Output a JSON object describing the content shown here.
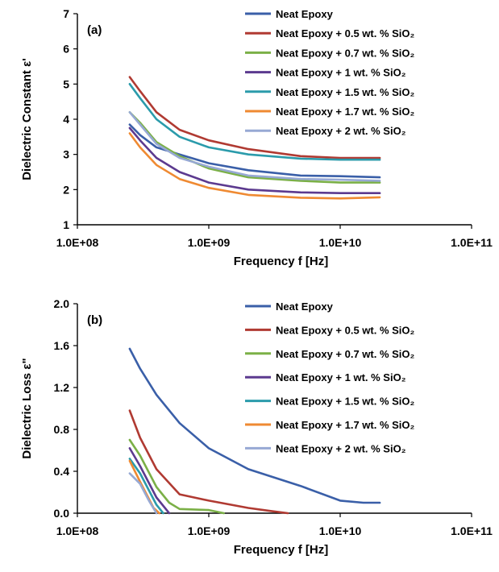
{
  "chart_data": [
    {
      "type": "line",
      "panel_label": "(a)",
      "xlabel": "Frequency f [Hz]",
      "ylabel": "Dielectric Constant ε'",
      "xscale": "log",
      "xlim": [
        100000000,
        100000000000
      ],
      "ylim": [
        1,
        7
      ],
      "xticks": [
        {
          "value": 100000000,
          "label": "1.0E+08"
        },
        {
          "value": 1000000000,
          "label": "1.0E+09"
        },
        {
          "value": 10000000000,
          "label": "1.0E+10"
        },
        {
          "value": 100000000000,
          "label": "1.0E+11"
        }
      ],
      "yticks": [
        {
          "value": 1,
          "label": "1"
        },
        {
          "value": 2,
          "label": "2"
        },
        {
          "value": 3,
          "label": "3"
        },
        {
          "value": 4,
          "label": "4"
        },
        {
          "value": 5,
          "label": "5"
        },
        {
          "value": 6,
          "label": "6"
        },
        {
          "value": 7,
          "label": "7"
        }
      ],
      "grid": false,
      "legend_position": "top-right",
      "series": [
        {
          "name": "Neat Epoxy",
          "color": "#3a5fa8",
          "x": [
            250000000,
            300000000,
            400000000,
            600000000,
            1000000000,
            2000000000,
            5000000000,
            10000000000,
            20000000000
          ],
          "y": [
            3.85,
            3.55,
            3.2,
            3.0,
            2.75,
            2.55,
            2.4,
            2.38,
            2.35
          ]
        },
        {
          "name": "Neat Epoxy + 0.5 wt. % SiO₂",
          "color": "#b03a32",
          "x": [
            250000000,
            300000000,
            400000000,
            600000000,
            1000000000,
            2000000000,
            5000000000,
            10000000000,
            20000000000
          ],
          "y": [
            5.2,
            4.8,
            4.2,
            3.7,
            3.4,
            3.15,
            2.95,
            2.9,
            2.9
          ]
        },
        {
          "name": "Neat Epoxy + 0.7 wt. % SiO₂",
          "color": "#7bb047",
          "x": [
            250000000,
            300000000,
            400000000,
            600000000,
            1000000000,
            2000000000,
            5000000000,
            10000000000,
            20000000000
          ],
          "y": [
            4.2,
            3.9,
            3.35,
            2.95,
            2.6,
            2.35,
            2.25,
            2.2,
            2.2
          ]
        },
        {
          "name": "Neat Epoxy + 1 wt. % SiO₂",
          "color": "#5c3a8f",
          "x": [
            250000000,
            300000000,
            400000000,
            600000000,
            1000000000,
            2000000000,
            5000000000,
            10000000000,
            20000000000
          ],
          "y": [
            3.75,
            3.4,
            2.9,
            2.5,
            2.2,
            2.0,
            1.92,
            1.9,
            1.9
          ]
        },
        {
          "name": "Neat Epoxy + 1.5 wt. % SiO₂",
          "color": "#2b9bab",
          "x": [
            250000000,
            300000000,
            400000000,
            600000000,
            1000000000,
            2000000000,
            5000000000,
            10000000000,
            20000000000
          ],
          "y": [
            5.0,
            4.6,
            4.0,
            3.5,
            3.2,
            3.0,
            2.88,
            2.85,
            2.85
          ]
        },
        {
          "name": "Neat Epoxy + 1.7 wt. % SiO₂",
          "color": "#ef8a32",
          "x": [
            250000000,
            300000000,
            400000000,
            600000000,
            1000000000,
            2000000000,
            5000000000,
            10000000000,
            20000000000
          ],
          "y": [
            3.6,
            3.2,
            2.7,
            2.3,
            2.05,
            1.85,
            1.77,
            1.75,
            1.78
          ]
        },
        {
          "name": "Neat Epoxy + 2 wt. % SiO₂",
          "color": "#97a9d4",
          "x": [
            250000000,
            300000000,
            400000000,
            600000000,
            1000000000,
            2000000000,
            5000000000,
            10000000000,
            20000000000
          ],
          "y": [
            4.2,
            3.85,
            3.3,
            2.9,
            2.65,
            2.4,
            2.3,
            2.28,
            2.25
          ]
        }
      ]
    },
    {
      "type": "line",
      "panel_label": "(b)",
      "xlabel": "Frequency f [Hz]",
      "ylabel": "Dielectric Loss ε\"",
      "xscale": "log",
      "xlim": [
        100000000,
        100000000000
      ],
      "ylim": [
        0,
        2
      ],
      "xticks": [
        {
          "value": 100000000,
          "label": "1.0E+08"
        },
        {
          "value": 1000000000,
          "label": "1.0E+09"
        },
        {
          "value": 10000000000,
          "label": "1.0E+10"
        },
        {
          "value": 100000000000,
          "label": "1.0E+11"
        }
      ],
      "yticks": [
        {
          "value": 0,
          "label": "0.0"
        },
        {
          "value": 0.4,
          "label": "0.4"
        },
        {
          "value": 0.8,
          "label": "0.8"
        },
        {
          "value": 1.2,
          "label": "1.2"
        },
        {
          "value": 1.6,
          "label": "1.6"
        },
        {
          "value": 2.0,
          "label": "2.0"
        }
      ],
      "grid": false,
      "legend_position": "top-right",
      "series": [
        {
          "name": "Neat Epoxy",
          "color": "#3a5fa8",
          "x": [
            250000000,
            300000000,
            400000000,
            600000000,
            1000000000,
            2000000000,
            5000000000,
            10000000000,
            15000000000,
            20000000000
          ],
          "y": [
            1.57,
            1.38,
            1.13,
            0.86,
            0.62,
            0.42,
            0.26,
            0.12,
            0.1,
            0.1
          ]
        },
        {
          "name": "Neat Epoxy + 0.5 wt. % SiO₂",
          "color": "#b03a32",
          "x": [
            250000000,
            300000000,
            400000000,
            600000000,
            1000000000,
            2000000000,
            3000000000,
            4000000000
          ],
          "y": [
            0.98,
            0.72,
            0.42,
            0.18,
            0.12,
            0.05,
            0.02,
            0.0
          ]
        },
        {
          "name": "Neat Epoxy + 0.7 wt. % SiO₂",
          "color": "#7bb047",
          "x": [
            250000000,
            300000000,
            400000000,
            500000000,
            600000000,
            1000000000,
            1300000000
          ],
          "y": [
            0.7,
            0.55,
            0.25,
            0.1,
            0.04,
            0.03,
            0.0
          ]
        },
        {
          "name": "Neat Epoxy + 1 wt. % SiO₂",
          "color": "#5c3a8f",
          "x": [
            250000000,
            300000000,
            400000000,
            500000000
          ],
          "y": [
            0.62,
            0.45,
            0.15,
            0.0
          ]
        },
        {
          "name": "Neat Epoxy + 1.5 wt. % SiO₂",
          "color": "#2b9bab",
          "x": [
            250000000,
            300000000,
            400000000,
            450000000
          ],
          "y": [
            0.52,
            0.38,
            0.08,
            0.0
          ]
        },
        {
          "name": "Neat Epoxy + 1.7 wt. % SiO₂",
          "color": "#ef8a32",
          "x": [
            250000000,
            300000000,
            380000000,
            420000000
          ],
          "y": [
            0.5,
            0.3,
            0.05,
            0.0
          ]
        },
        {
          "name": "Neat Epoxy + 2 wt. % SiO₂",
          "color": "#97a9d4",
          "x": [
            250000000,
            300000000,
            350000000,
            400000000
          ],
          "y": [
            0.38,
            0.28,
            0.12,
            0.0
          ]
        }
      ]
    }
  ]
}
